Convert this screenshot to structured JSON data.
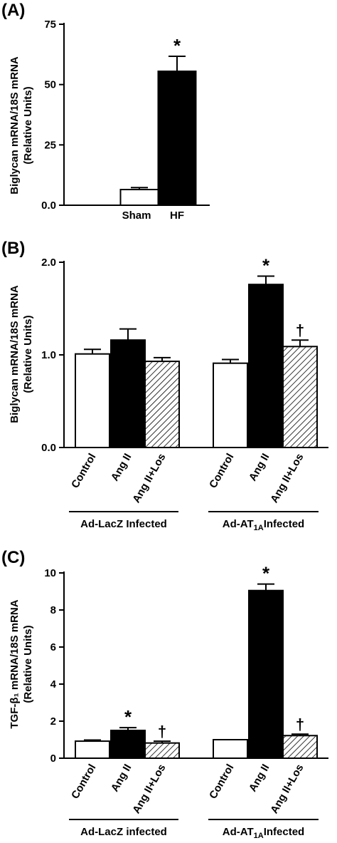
{
  "chart_data": [
    {
      "type": "bar",
      "panel_label": "(A)",
      "ylabel_line1": "Biglycan mRNA/18S mRNA",
      "ylabel_line2": "(Relative Units)",
      "ylim": [
        0,
        75
      ],
      "yticks": [
        "0.0",
        "25",
        "50",
        "75"
      ],
      "categories": [
        "Sham",
        "HF"
      ],
      "values": [
        6.5,
        55.5
      ],
      "errors": [
        0.8,
        6.2
      ],
      "fills": [
        "white",
        "black"
      ],
      "annotations": [
        "",
        "*"
      ]
    },
    {
      "type": "bar",
      "panel_label": "(B)",
      "ylabel_line1": "Biglycan mRNA/18S mRNA",
      "ylabel_line2": "(Relative Units)",
      "ylim": [
        0,
        2.0
      ],
      "yticks": [
        "0.0",
        "1.0",
        "2.0"
      ],
      "categories": [
        "Control",
        "Ang II",
        "Ang II+Los",
        "Control",
        "Ang II",
        "Ang II+Los"
      ],
      "values": [
        1.01,
        1.16,
        0.93,
        0.91,
        1.76,
        1.09
      ],
      "errors": [
        0.05,
        0.12,
        0.04,
        0.04,
        0.09,
        0.07
      ],
      "fills": [
        "white",
        "black",
        "hatch",
        "white",
        "black",
        "hatch"
      ],
      "annotations": [
        "",
        "",
        "",
        "",
        "*",
        "†"
      ],
      "groups": [
        {
          "label": "Ad-LacZ Infected",
          "sub": "",
          "suffix": ""
        },
        {
          "label": "Ad-AT",
          "sub": "1A",
          "suffix": "Infected"
        }
      ]
    },
    {
      "type": "bar",
      "panel_label": "(C)",
      "ylabel_line1": "TGF-β₁ mRNA/18S mRNA",
      "ylabel_line2": "(Relative Units)",
      "ylim": [
        0,
        10
      ],
      "yticks": [
        "0",
        "2",
        "4",
        "6",
        "8",
        "10"
      ],
      "categories": [
        "Control",
        "Ang II",
        "Ang II+Los",
        "Control",
        "Ang II",
        "Ang II+Los"
      ],
      "values": [
        0.92,
        1.5,
        0.82,
        1.0,
        9.05,
        1.22
      ],
      "errors": [
        0.06,
        0.15,
        0.1,
        0.0,
        0.35,
        0.08
      ],
      "fills": [
        "white",
        "black",
        "hatch",
        "white",
        "black",
        "hatch"
      ],
      "annotations": [
        "",
        "*",
        "†",
        "",
        "*",
        "†"
      ],
      "groups": [
        {
          "label": "Ad-LacZ infected",
          "sub": "",
          "suffix": ""
        },
        {
          "label": "Ad-AT",
          "sub": "1A",
          "suffix": "Infected"
        }
      ]
    }
  ]
}
